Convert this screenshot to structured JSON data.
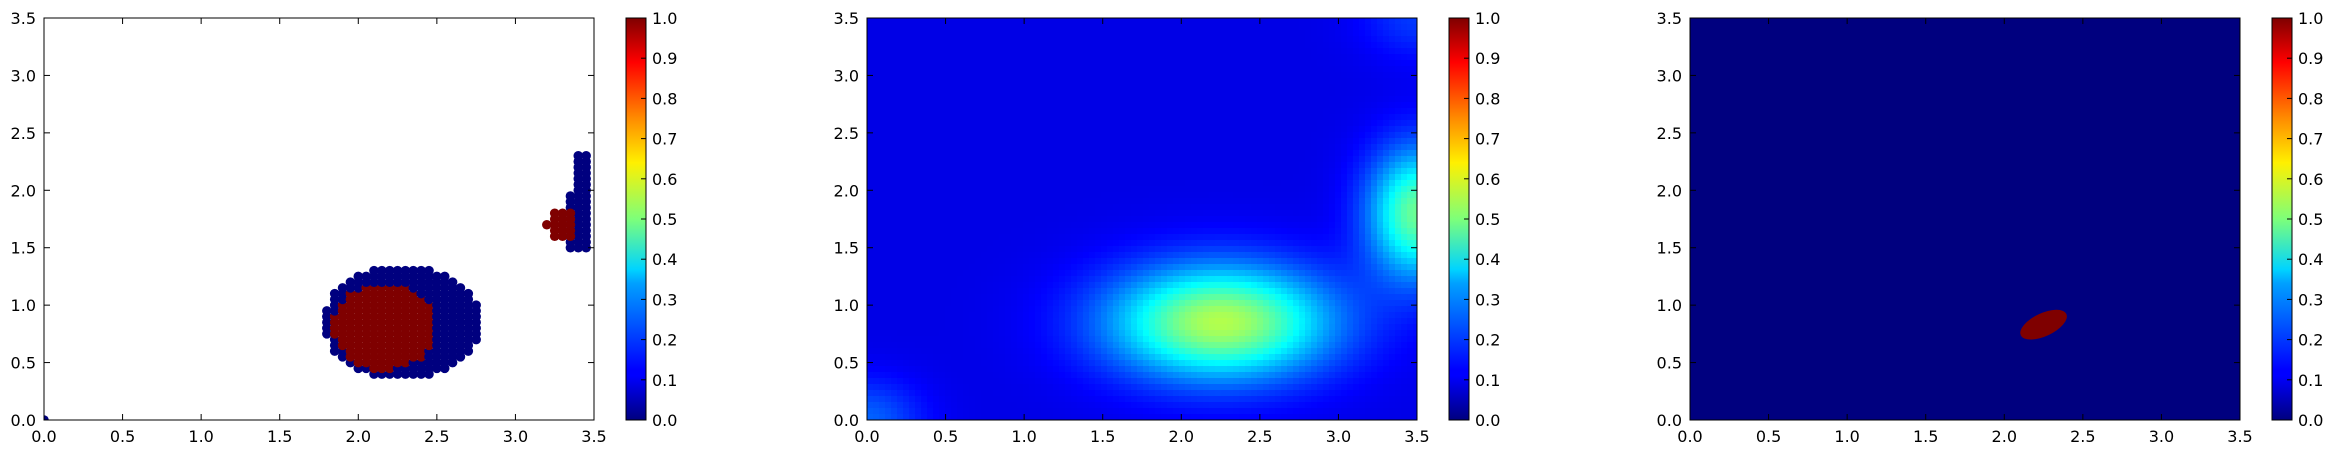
{
  "chart_data": [
    {
      "type": "scatter",
      "title": "",
      "xlabel": "",
      "ylabel": "",
      "xlim": [
        0,
        3.5
      ],
      "ylim": [
        0,
        3.5
      ],
      "xticks": [
        "0.0",
        "0.5",
        "1.0",
        "1.5",
        "2.0",
        "2.5",
        "3.0",
        "3.5"
      ],
      "yticks": [
        "0.0",
        "0.5",
        "1.0",
        "1.5",
        "2.0",
        "2.5",
        "3.0",
        "3.5"
      ],
      "colorbar": {
        "range": [
          0,
          1
        ],
        "ticks": [
          "0.0",
          "0.1",
          "0.2",
          "0.3",
          "0.4",
          "0.5",
          "0.6",
          "0.7",
          "0.8",
          "0.9",
          "1.0"
        ],
        "colormap": "jet"
      },
      "series": [
        {
          "value": 0,
          "color": "#00007f",
          "description_regions": [
            {
              "x": [
                1.8,
                2.8
              ],
              "y": [
                0.35,
                1.35
              ]
            },
            {
              "x": [
                3.35,
                3.45
              ],
              "y": [
                1.5,
                2.3
              ]
            }
          ]
        },
        {
          "value": 1,
          "color": "#7f0000",
          "description_regions": [
            {
              "x": [
                1.85,
                2.45
              ],
              "y": [
                0.45,
                1.2
              ]
            },
            {
              "x": [
                3.2,
                3.35
              ],
              "y": [
                1.6,
                1.8
              ]
            }
          ]
        }
      ],
      "origin_point": {
        "x": 0,
        "y": 0,
        "value": 0
      }
    },
    {
      "type": "heatmap",
      "title": "",
      "xlabel": "",
      "ylabel": "",
      "xlim": [
        0,
        3.5
      ],
      "ylim": [
        0,
        3.5
      ],
      "xticks": [
        "0.0",
        "0.5",
        "1.0",
        "1.5",
        "2.0",
        "2.5",
        "3.0",
        "3.5"
      ],
      "yticks": [
        "0.0",
        "0.5",
        "1.0",
        "1.5",
        "2.0",
        "2.5",
        "3.0",
        "3.5"
      ],
      "colorbar": {
        "range": [
          0,
          1
        ],
        "ticks": [
          "0.0",
          "0.1",
          "0.2",
          "0.3",
          "0.4",
          "0.5",
          "0.6",
          "0.7",
          "0.8",
          "0.9",
          "1.0"
        ],
        "colormap": "jet"
      },
      "background_level": 0.1,
      "peaks": [
        {
          "x": 2.25,
          "y": 0.85,
          "value": 0.45,
          "sx": 0.5,
          "sy": 0.35
        },
        {
          "x": 3.5,
          "y": 1.8,
          "value": 0.38,
          "sx": 0.22,
          "sy": 0.4
        },
        {
          "x": 0.0,
          "y": 0.0,
          "value": 0.12,
          "sx": 0.25,
          "sy": 0.25
        },
        {
          "x": 3.5,
          "y": 3.5,
          "value": 0.08,
          "sx": 0.25,
          "sy": 0.25
        }
      ]
    },
    {
      "type": "heatmap",
      "title": "",
      "xlabel": "",
      "ylabel": "",
      "xlim": [
        0,
        3.5
      ],
      "ylim": [
        0,
        3.5
      ],
      "xticks": [
        "0.0",
        "0.5",
        "1.0",
        "1.5",
        "2.0",
        "2.5",
        "3.0",
        "3.5"
      ],
      "yticks": [
        "0.0",
        "0.5",
        "1.0",
        "1.5",
        "2.0",
        "2.5",
        "3.0",
        "3.5"
      ],
      "colorbar": {
        "range": [
          0,
          1
        ],
        "ticks": [
          "0.0",
          "0.1",
          "0.2",
          "0.3",
          "0.4",
          "0.5",
          "0.6",
          "0.7",
          "0.8",
          "0.9",
          "1.0"
        ],
        "colormap": "jet"
      },
      "background_value": 0,
      "background_color": "#00007f",
      "region": {
        "shape": "ellipse",
        "cx": 2.25,
        "cy": 0.83,
        "rx": 0.16,
        "ry": 0.1,
        "value": 1,
        "color": "#7f0000"
      }
    }
  ]
}
